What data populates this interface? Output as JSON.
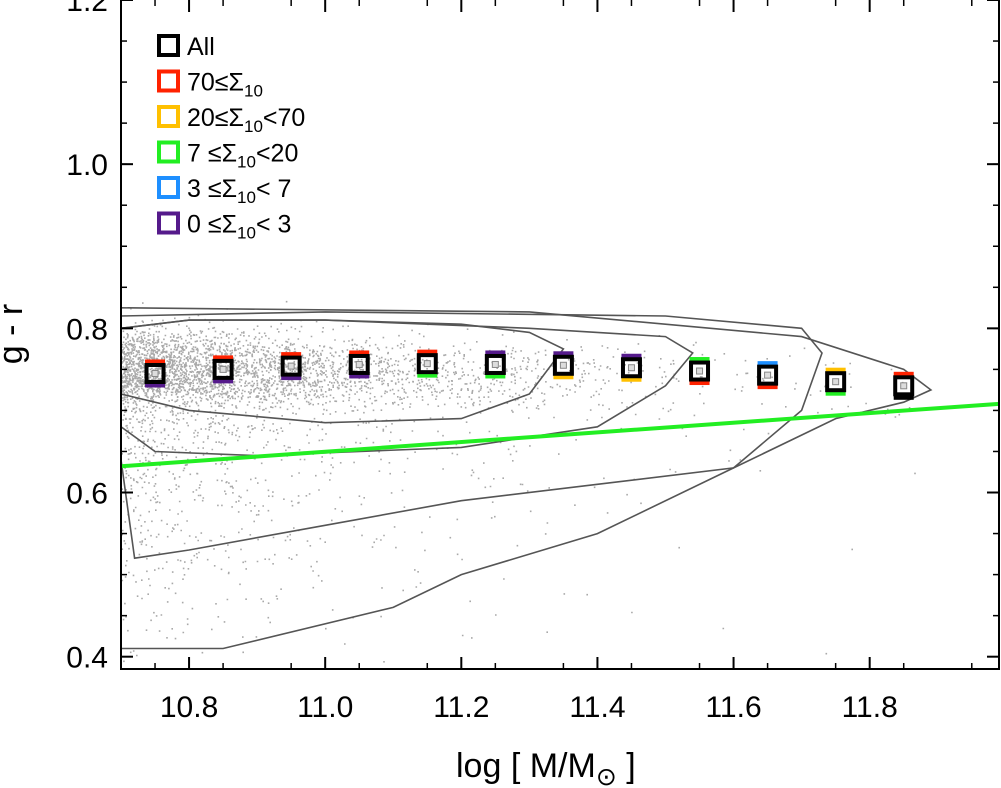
{
  "chart_data": {
    "type": "scatter",
    "xlabel_main": "log [ M/M",
    "xlabel_sub": "⊙",
    "xlabel_end": " ]",
    "ylabel": "g - r",
    "xlim": [
      10.7,
      11.99
    ],
    "ylim": [
      0.385,
      1.2
    ],
    "xticks": [
      10.8,
      11.0,
      11.2,
      11.4,
      11.6,
      11.8
    ],
    "xtick_labels": [
      "10.8",
      "11.0",
      "11.2",
      "11.4",
      "11.6",
      "11.8"
    ],
    "yticks": [
      0.4,
      0.6,
      0.8,
      1.0,
      1.2
    ],
    "ytick_labels": [
      "0.4",
      "0.6",
      "0.8",
      "1.0",
      "1.2"
    ],
    "legend": [
      {
        "name": "All",
        "color": "#000000",
        "pre": "All",
        "sub": "",
        "post": ""
      },
      {
        "name": "70≤Σ10",
        "color": "#ff2200",
        "pre": "70≤Σ",
        "sub": "10",
        "post": ""
      },
      {
        "name": "20≤Σ10<70",
        "color": "#ffc000",
        "pre": "20≤Σ",
        "sub": "10",
        "post": "<70"
      },
      {
        "name": "7≤Σ10<20",
        "color": "#22ee22",
        "pre": " 7 ≤Σ",
        "sub": "10",
        "post": "<20"
      },
      {
        "name": "3≤Σ10<7",
        "color": "#1e8fff",
        "pre": " 3 ≤Σ",
        "sub": "10",
        "post": "< 7"
      },
      {
        "name": "0≤Σ10<3",
        "color": "#551a8b",
        "pre": " 0 ≤Σ",
        "sub": "10",
        "post": "< 3"
      }
    ],
    "median_points": {
      "x": [
        10.75,
        10.85,
        10.95,
        11.05,
        11.15,
        11.25,
        11.35,
        11.45,
        11.55,
        11.65,
        11.75,
        11.85
      ],
      "all": [
        0.745,
        0.75,
        0.754,
        0.756,
        0.757,
        0.756,
        0.755,
        0.752,
        0.748,
        0.743,
        0.735,
        0.73
      ],
      "env_top_color": [
        "#ff2200",
        "#ff2200",
        "#ff2200",
        "#ff2200",
        "#ff2200",
        "#551a8b",
        "#551a8b",
        "#551a8b",
        "#22ee22",
        "#1e8fff",
        "#ffc000",
        "#ff2200"
      ],
      "env_bottom_color": [
        "#551a8b",
        "#551a8b",
        "#551a8b",
        "#551a8b",
        "#22ee22",
        "#22ee22",
        "#ffc000",
        "#ffc000",
        "#ff2200",
        "#ff2200",
        "#22ee22",
        "#000000"
      ]
    },
    "divider_line": {
      "color": "#22ee22",
      "x": [
        10.7,
        11.99
      ],
      "y": [
        0.632,
        0.708
      ]
    },
    "contours": [
      {
        "x": [
          10.7,
          10.8,
          11.0,
          11.2,
          11.3,
          11.35,
          11.3,
          11.2,
          11.0,
          10.8,
          10.7
        ],
        "y": [
          0.72,
          0.7,
          0.685,
          0.69,
          0.72,
          0.775,
          0.795,
          0.805,
          0.81,
          0.81,
          0.8
        ]
      },
      {
        "x": [
          10.7,
          10.75,
          10.9,
          11.2,
          11.4,
          11.5,
          11.54,
          11.5,
          11.3,
          11.0,
          10.8,
          10.7
        ],
        "y": [
          0.68,
          0.65,
          0.645,
          0.655,
          0.68,
          0.73,
          0.77,
          0.79,
          0.8,
          0.81,
          0.81,
          0.8
        ]
      },
      {
        "x": [
          10.7,
          10.72,
          10.8,
          11.0,
          11.2,
          11.4,
          11.6,
          11.7,
          11.73,
          11.7,
          11.5,
          11.0,
          10.7
        ],
        "y": [
          0.64,
          0.52,
          0.53,
          0.56,
          0.59,
          0.61,
          0.63,
          0.7,
          0.77,
          0.8,
          0.815,
          0.82,
          0.815
        ]
      },
      {
        "x": [
          10.7,
          10.85,
          11.1,
          11.2,
          11.4,
          11.6,
          11.75,
          11.85,
          11.89,
          11.85,
          11.7,
          11.3,
          10.7
        ],
        "y": [
          0.41,
          0.41,
          0.46,
          0.5,
          0.55,
          0.63,
          0.69,
          0.71,
          0.725,
          0.75,
          0.79,
          0.82,
          0.825
        ]
      }
    ]
  }
}
